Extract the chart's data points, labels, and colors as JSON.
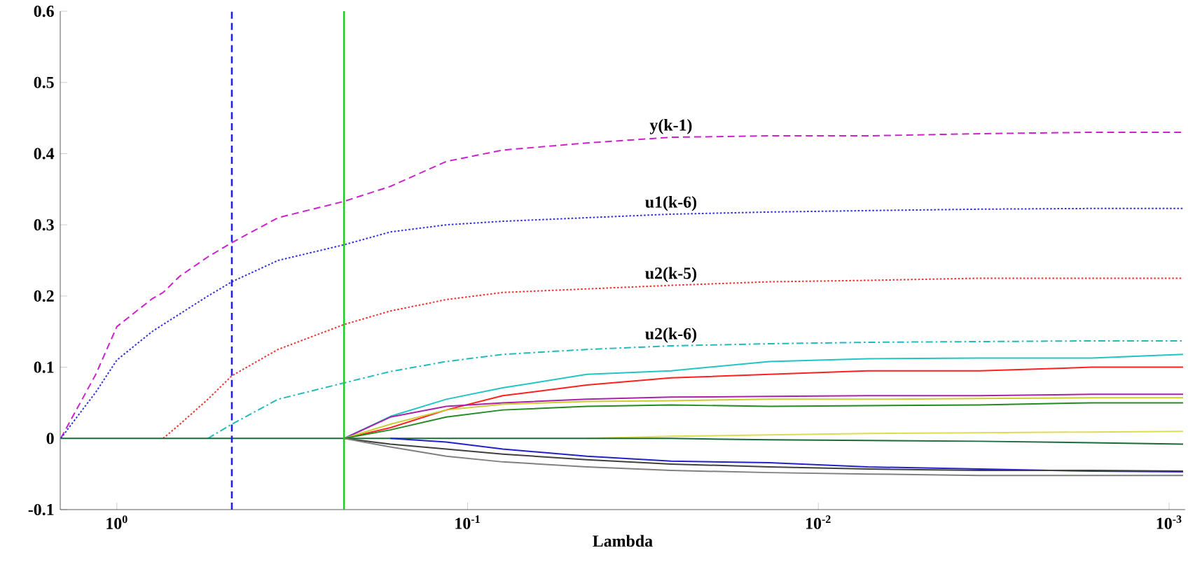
{
  "chart_data": {
    "type": "line",
    "xlabel": "Lambda",
    "log": "x",
    "x": [
      1.445,
      1.148,
      1,
      0.794,
      0.738,
      0.661,
      0.55,
      0.47,
      0.347,
      0.225,
      0.166,
      0.115,
      0.0794,
      0.0457,
      0.0263,
      0.0138,
      0.00724,
      0.00347,
      0.00166,
      0.000912
    ],
    "xlim": [
      1.45,
      0.0009
    ],
    "xticks": [
      {
        "value": 1,
        "label": "10$^{0}$"
      },
      {
        "value": 0.1,
        "label": "10$^{-1}$"
      },
      {
        "value": 0.01,
        "label": "10$^{-2}$"
      },
      {
        "value": 0.001,
        "label": "10$^{-3}$"
      }
    ],
    "ylim": [
      -0.1,
      0.6
    ],
    "yticks": [
      -0.1,
      0,
      0.1,
      0.2,
      0.3,
      0.4,
      0.5,
      0.6
    ],
    "ref_lines": [
      {
        "axis": "x",
        "value": 0.47,
        "color": "#1f1fe6",
        "line_style": "dashed"
      },
      {
        "axis": "x",
        "value": 0.225,
        "color": "#22cc22",
        "line_style": "solid"
      }
    ],
    "series": [
      {
        "name": "y(k-1)",
        "color": "#cc22cc",
        "line_style": "dashed",
        "values": [
          0,
          0.09,
          0.157,
          0.196,
          0.205,
          0.228,
          0.255,
          0.275,
          0.31,
          0.333,
          0.354,
          0.389,
          0.405,
          0.415,
          0.423,
          0.425,
          0.425,
          0.428,
          0.43,
          0.43
        ]
      },
      {
        "name": "u1(k-6)",
        "color": "#3333dd",
        "line_style": "dotted",
        "values": [
          0,
          0.065,
          0.11,
          0.15,
          0.16,
          0.175,
          0.2,
          0.22,
          0.25,
          0.272,
          0.29,
          0.3,
          0.305,
          0.31,
          0.315,
          0.318,
          0.32,
          0.322,
          0.323,
          0.323
        ]
      },
      {
        "name": "u2(k-5)",
        "color": "#ee3333",
        "line_style": "dotted",
        "values": [
          null,
          null,
          null,
          null,
          0,
          0.02,
          0.055,
          0.088,
          0.125,
          0.16,
          0.179,
          0.195,
          0.205,
          0.21,
          0.215,
          0.22,
          0.222,
          0.225,
          0.225,
          0.225
        ]
      },
      {
        "name": "u2(k-6)",
        "color": "#22bbbb",
        "line_style": "dashdot",
        "values": [
          null,
          null,
          null,
          null,
          null,
          null,
          0,
          0.02,
          0.055,
          0.078,
          0.094,
          0.108,
          0.118,
          0.125,
          0.13,
          0.133,
          0.135,
          0.136,
          0.137,
          0.137
        ]
      },
      {
        "color": "#22c4c4",
        "values": [
          null,
          null,
          null,
          null,
          null,
          null,
          null,
          null,
          null,
          0,
          0.031,
          0.055,
          0.071,
          0.09,
          0.095,
          0.108,
          0.112,
          0.113,
          0.113,
          0.118
        ]
      },
      {
        "color": "#ff2020",
        "values": [
          null,
          null,
          null,
          null,
          null,
          null,
          null,
          null,
          null,
          0,
          0.015,
          0.04,
          0.06,
          0.075,
          0.085,
          0.09,
          0.095,
          0.095,
          0.1,
          0.1
        ]
      },
      {
        "color": "#aa22aa",
        "values": [
          null,
          null,
          null,
          null,
          null,
          null,
          null,
          null,
          null,
          0,
          0.03,
          0.045,
          0.05,
          0.055,
          0.058,
          0.059,
          0.06,
          0.06,
          0.062,
          0.062
        ]
      },
      {
        "color": "#cccc33",
        "values": [
          null,
          null,
          null,
          null,
          null,
          null,
          null,
          null,
          null,
          0,
          0.02,
          0.04,
          0.048,
          0.052,
          0.053,
          0.055,
          0.055,
          0.056,
          0.057,
          0.057
        ]
      },
      {
        "color": "#228b22",
        "values": [
          null,
          null,
          null,
          null,
          null,
          null,
          null,
          null,
          null,
          0,
          0.012,
          0.03,
          0.04,
          0.045,
          0.047,
          0.045,
          0.046,
          0.047,
          0.05,
          0.05
        ]
      },
      {
        "color": "#dddd55",
        "values": [
          null,
          null,
          null,
          null,
          null,
          null,
          null,
          null,
          null,
          null,
          null,
          null,
          null,
          0,
          0.003,
          0.005,
          0.007,
          0.008,
          0.009,
          0.01
        ]
      },
      {
        "color": "#1a6b3a",
        "values": [
          0,
          0,
          0,
          0,
          0,
          0,
          0,
          0,
          0,
          0,
          0,
          0,
          0,
          0,
          0,
          -0.002,
          -0.003,
          -0.004,
          -0.006,
          -0.008
        ]
      },
      {
        "color": "#2222cc",
        "values": [
          null,
          null,
          null,
          null,
          null,
          null,
          null,
          null,
          null,
          null,
          0,
          -0.005,
          -0.015,
          -0.025,
          -0.032,
          -0.034,
          -0.04,
          -0.043,
          -0.046,
          -0.047
        ]
      },
      {
        "color": "#404040",
        "values": [
          null,
          null,
          null,
          null,
          null,
          null,
          null,
          null,
          null,
          0,
          -0.008,
          -0.015,
          -0.022,
          -0.03,
          -0.036,
          -0.04,
          -0.043,
          -0.045,
          -0.045,
          -0.046
        ]
      },
      {
        "color": "#808080",
        "values": [
          null,
          null,
          null,
          null,
          null,
          null,
          null,
          null,
          null,
          0,
          -0.012,
          -0.025,
          -0.033,
          -0.04,
          -0.045,
          -0.048,
          -0.05,
          -0.052,
          -0.052,
          -0.052
        ]
      }
    ]
  }
}
